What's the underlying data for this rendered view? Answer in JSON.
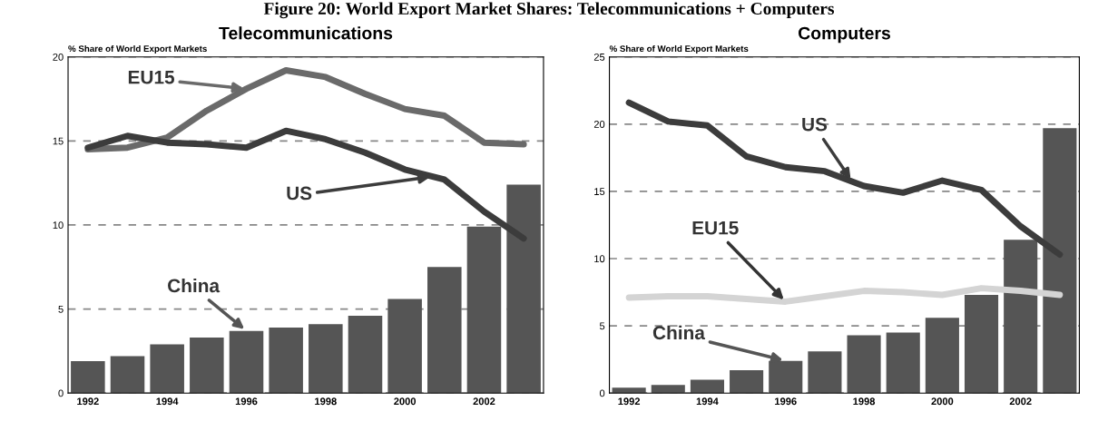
{
  "chart_data": [
    {
      "type": "bar",
      "title": "Telecommunications",
      "ylabel": "% Share of World Export Markets",
      "annotations": [
        "Figure 20: World Export Market Shares: Telecommunications + Computers"
      ],
      "categories": [
        "1992",
        null,
        "1994",
        null,
        "1996",
        null,
        "1998",
        null,
        "2000",
        null,
        "2002",
        null
      ],
      "series": [
        {
          "name": "China",
          "color": "#555555",
          "values": [
            1.9,
            2.2,
            2.9,
            3.3,
            3.7,
            3.9,
            4.1,
            4.6,
            5.6,
            7.5,
            9.9,
            12.4
          ]
        },
        {
          "name": "EU15",
          "type": "line",
          "color": "#6a6a6a",
          "values": [
            14.5,
            14.6,
            15.2,
            16.8,
            18.1,
            19.2,
            18.8,
            17.8,
            16.9,
            16.5,
            14.9,
            14.8
          ]
        },
        {
          "name": "US",
          "type": "line",
          "color": "#3c3c3c",
          "values": [
            14.6,
            15.3,
            14.9,
            14.8,
            14.6,
            15.6,
            15.1,
            14.3,
            13.3,
            12.7,
            10.8,
            9.2
          ]
        }
      ],
      "ylim": [
        0,
        20
      ],
      "yticks": [
        0,
        5,
        10,
        15,
        20
      ],
      "grid": "y"
    },
    {
      "type": "bar",
      "title": "Computers",
      "ylabel": "% Share of World Export Markets",
      "categories": [
        "1992",
        null,
        "1994",
        null,
        "1996",
        null,
        "1998",
        null,
        "2000",
        null,
        "2002",
        null
      ],
      "series": [
        {
          "name": "China",
          "color": "#555555",
          "values": [
            0.4,
            0.6,
            1.0,
            1.7,
            2.4,
            3.1,
            4.3,
            4.5,
            5.6,
            7.3,
            11.4,
            19.7
          ]
        },
        {
          "name": "EU15",
          "type": "line",
          "color": "#d4d4d4",
          "values": [
            7.1,
            7.2,
            7.2,
            7.0,
            6.8,
            7.2,
            7.6,
            7.5,
            7.3,
            7.8,
            7.6,
            7.3
          ]
        },
        {
          "name": "US",
          "type": "line",
          "color": "#3c3c3c",
          "values": [
            21.6,
            20.2,
            19.9,
            17.6,
            16.8,
            16.5,
            15.4,
            14.9,
            15.8,
            15.1,
            12.4,
            10.3
          ]
        }
      ],
      "ylim": [
        0,
        25
      ],
      "yticks": [
        0,
        5,
        10,
        15,
        20,
        25
      ],
      "grid": "y"
    }
  ]
}
